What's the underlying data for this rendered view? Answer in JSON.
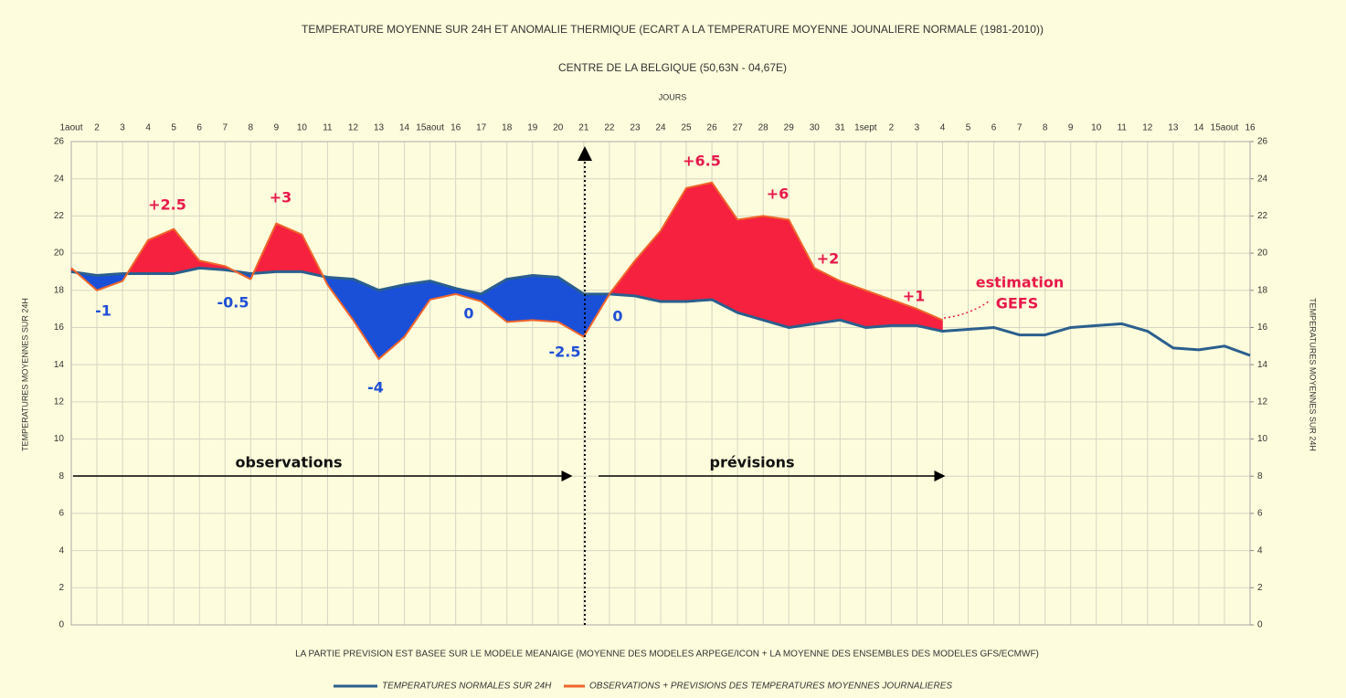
{
  "chart_data": {
    "type": "line",
    "title": "TEMPERATURE MOYENNE SUR 24H ET  ANOMALIE THERMIQUE (ECART A LA TEMPERATURE MOYENNE JOUNALIERE NORMALE (1981-2010))",
    "subtitle": "CENTRE DE LA BELGIQUE (50,63N - 04,67E)",
    "x_label": "JOURS",
    "y_label": "TEMPERATURES MOYENNES SUR 24H",
    "y2_label": "TEMPERATURES MOYENNES SUR 24H",
    "footnote": "LA PARTIE PREVISION EST BASEE SUR LE MODELE MEANAIGE (MOYENNE DES MODELES  ARPEGE/ICON + LA MOYENNE DES ENSEMBLES DES MODELES GFS/ECMWF)",
    "categories": [
      "1aout",
      "2",
      "3",
      "4",
      "5",
      "6",
      "7",
      "8",
      "9",
      "10",
      "11",
      "12",
      "13",
      "14",
      "15aout",
      "16",
      "17",
      "18",
      "19",
      "20",
      "21",
      "22",
      "23",
      "24",
      "25",
      "26",
      "27",
      "28",
      "29",
      "30",
      "31",
      "1sept",
      "2",
      "3",
      "4",
      "5",
      "6",
      "7",
      "8",
      "9",
      "10",
      "11",
      "12",
      "13",
      "14",
      "15aout",
      "16"
    ],
    "series": [
      {
        "name": "TEMPERATURES NORMALES SUR 24H",
        "color": "#2b5f8e",
        "values": [
          19.0,
          18.8,
          18.9,
          18.9,
          18.9,
          19.2,
          19.1,
          18.9,
          19.0,
          19.0,
          18.7,
          18.6,
          18.0,
          18.3,
          18.5,
          18.1,
          17.8,
          18.6,
          18.8,
          18.7,
          17.8,
          17.8,
          17.7,
          17.4,
          17.4,
          17.5,
          16.8,
          16.4,
          16.0,
          16.2,
          16.4,
          16.0,
          16.1,
          16.1,
          15.8,
          15.9,
          16.0,
          15.6,
          15.6,
          16.0,
          16.1,
          16.2,
          15.8,
          14.9,
          14.8,
          15.0,
          14.5
        ]
      },
      {
        "name": "OBSERVATIONS + PREVISIONS DES TEMPERATURES MOYENNES JOURNALIERES",
        "color": "#f0642a",
        "values": [
          19.2,
          18.0,
          18.5,
          20.7,
          21.3,
          19.6,
          19.3,
          18.6,
          21.6,
          21.0,
          18.3,
          16.4,
          14.3,
          15.5,
          17.5,
          17.8,
          17.4,
          16.3,
          16.4,
          16.3,
          15.5,
          17.8,
          19.6,
          21.2,
          23.5,
          23.8,
          21.8,
          22.0,
          21.8,
          19.2,
          18.5,
          18.0,
          17.5,
          17.0,
          16.4,
          null,
          null,
          null,
          null,
          null,
          null,
          null,
          null,
          null,
          null,
          null,
          null
        ]
      }
    ],
    "warm_color": "#f5213f",
    "cold_color": "#1a4fd8",
    "ylim": [
      0,
      26
    ],
    "yticks": [
      0,
      2,
      4,
      6,
      8,
      10,
      12,
      14,
      16,
      18,
      20,
      22,
      24,
      26
    ],
    "y2lim": [
      0,
      26
    ],
    "y2ticks": [
      0,
      2,
      4,
      6,
      8,
      10,
      12,
      14,
      16,
      18,
      20,
      22,
      24,
      26
    ],
    "grid": true,
    "annotations": [
      {
        "text": "+2.5",
        "color": "#e8194a"
      },
      {
        "text": "+3",
        "color": "#e8194a"
      },
      {
        "text": "+6.5",
        "color": "#e8194a"
      },
      {
        "text": "+6",
        "color": "#e8194a"
      },
      {
        "text": "+2",
        "color": "#e8194a"
      },
      {
        "text": "+1",
        "color": "#e8194a"
      },
      {
        "text": "-1",
        "color": "#1f4fd6"
      },
      {
        "text": "-0.5",
        "color": "#1f4fd6"
      },
      {
        "text": "0",
        "color": "#1f4fd6"
      },
      {
        "text": "-4",
        "color": "#1f4fd6"
      },
      {
        "text": "0",
        "color": "#1f4fd6"
      },
      {
        "text": "-2.5",
        "color": "#1f4fd6"
      },
      {
        "text": "observations",
        "color": "#111111"
      },
      {
        "text": "prévisions",
        "color": "#111111"
      },
      {
        "text": "estimation",
        "color": "#e8194a"
      },
      {
        "text": "GEFS",
        "color": "#e8194a"
      }
    ]
  }
}
